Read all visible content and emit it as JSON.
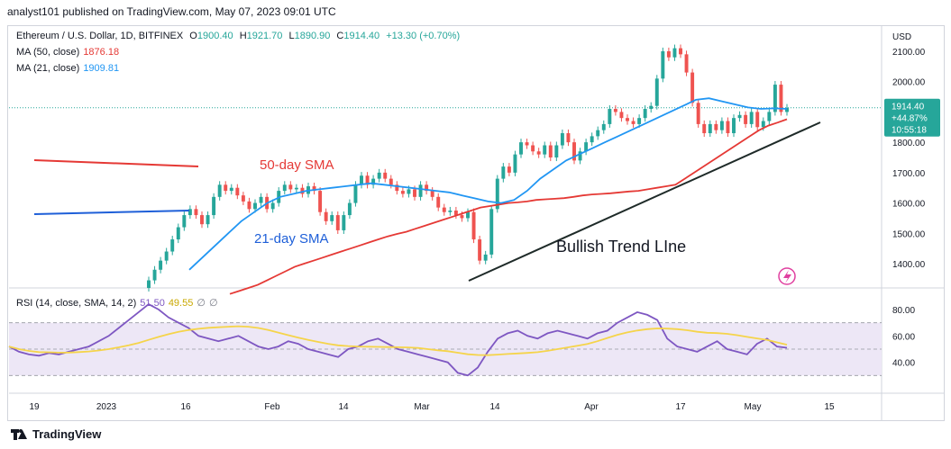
{
  "publisher_line": "analyst101 published on TradingView.com, May 07, 2023 09:01 UTC",
  "legend": {
    "symbol": "Ethereum / U.S. Dollar, 1D, BITFINEX",
    "o_label": "O",
    "o": "1900.40",
    "h_label": "H",
    "h": "1921.70",
    "l_label": "L",
    "l": "1890.90",
    "c_label": "C",
    "c": "1914.40",
    "change": "+13.30 (+0.70%)",
    "ma50_label": "MA (50, close)",
    "ma50_value": "1876.18",
    "ma21_label": "MA (21, close)",
    "ma21_value": "1909.81",
    "rsi_label": "RSI (14, close, SMA, 14, 2)",
    "rsi_value": "51.50",
    "rsi_sma": "49.55",
    "rsi_extra1": "∅",
    "rsi_extra2": "∅"
  },
  "price_axis": {
    "currency": "USD",
    "ticks": [
      "2100.00",
      "2000.00",
      "1900.00",
      "1800.00",
      "1700.00",
      "1600.00",
      "1500.00",
      "1400.00"
    ]
  },
  "rsi_axis": {
    "ticks": [
      "80.00",
      "60.00",
      "40.00"
    ]
  },
  "time_axis": {
    "ticks": [
      "19",
      "2023",
      "16",
      "Feb",
      "14",
      "Mar",
      "14",
      "Apr",
      "17",
      "May",
      "15"
    ]
  },
  "price_badge": {
    "price": "1914.40",
    "change_pct": "+44.87%",
    "countdown": "10:55:18"
  },
  "annotations": {
    "sma50": "50-day SMA",
    "sma21": "21-day SMA",
    "trend": "Bullish Trend LIne"
  },
  "colors": {
    "up": "#26a69a",
    "down": "#ef5350",
    "ma50": "#e53935",
    "ma21": "#2196f3",
    "rsi": "#7e57c2",
    "rsi_sma": "#f5d44a",
    "trend": "#1e2a28",
    "band": "#ede7f6"
  },
  "footer_brand": "TradingView",
  "chart_data": [
    {
      "type": "candlestick",
      "title": "Ethereum / U.S. Dollar, 1D, BITFINEX",
      "x_ticks": [
        "19",
        "2023",
        "16",
        "Feb",
        "14",
        "Mar",
        "14",
        "Apr",
        "17",
        "May",
        "15"
      ],
      "ylim": [
        1320,
        2180
      ],
      "y_ticks": [
        1400,
        1500,
        1600,
        1700,
        1800,
        1900,
        2000,
        2100
      ],
      "candles": [
        {
          "o": 1320,
          "c": 1345
        },
        {
          "o": 1345,
          "c": 1380
        },
        {
          "o": 1380,
          "c": 1410
        },
        {
          "o": 1410,
          "c": 1440
        },
        {
          "o": 1440,
          "c": 1480
        },
        {
          "o": 1480,
          "c": 1520
        },
        {
          "o": 1520,
          "c": 1560
        },
        {
          "o": 1560,
          "c": 1580
        },
        {
          "o": 1580,
          "c": 1560
        },
        {
          "o": 1560,
          "c": 1530
        },
        {
          "o": 1530,
          "c": 1560
        },
        {
          "o": 1560,
          "c": 1620
        },
        {
          "o": 1620,
          "c": 1660
        },
        {
          "o": 1660,
          "c": 1640
        },
        {
          "o": 1640,
          "c": 1650
        },
        {
          "o": 1650,
          "c": 1625
        },
        {
          "o": 1625,
          "c": 1605
        },
        {
          "o": 1605,
          "c": 1580
        },
        {
          "o": 1580,
          "c": 1600
        },
        {
          "o": 1600,
          "c": 1620
        },
        {
          "o": 1620,
          "c": 1580
        },
        {
          "o": 1580,
          "c": 1600
        },
        {
          "o": 1600,
          "c": 1640
        },
        {
          "o": 1640,
          "c": 1660
        },
        {
          "o": 1660,
          "c": 1645
        },
        {
          "o": 1645,
          "c": 1650
        },
        {
          "o": 1650,
          "c": 1630
        },
        {
          "o": 1630,
          "c": 1655
        },
        {
          "o": 1655,
          "c": 1640
        },
        {
          "o": 1640,
          "c": 1570
        },
        {
          "o": 1570,
          "c": 1540
        },
        {
          "o": 1540,
          "c": 1560
        },
        {
          "o": 1560,
          "c": 1510
        },
        {
          "o": 1510,
          "c": 1560
        },
        {
          "o": 1560,
          "c": 1600
        },
        {
          "o": 1600,
          "c": 1660
        },
        {
          "o": 1660,
          "c": 1690
        },
        {
          "o": 1690,
          "c": 1660
        },
        {
          "o": 1660,
          "c": 1680
        },
        {
          "o": 1680,
          "c": 1700
        },
        {
          "o": 1700,
          "c": 1680
        },
        {
          "o": 1680,
          "c": 1660
        },
        {
          "o": 1660,
          "c": 1640
        },
        {
          "o": 1640,
          "c": 1630
        },
        {
          "o": 1630,
          "c": 1645
        },
        {
          "o": 1645,
          "c": 1620
        },
        {
          "o": 1620,
          "c": 1660
        },
        {
          "o": 1660,
          "c": 1640
        },
        {
          "o": 1640,
          "c": 1620
        },
        {
          "o": 1620,
          "c": 1585
        },
        {
          "o": 1585,
          "c": 1570
        },
        {
          "o": 1570,
          "c": 1575
        },
        {
          "o": 1575,
          "c": 1560
        },
        {
          "o": 1560,
          "c": 1550
        },
        {
          "o": 1550,
          "c": 1570
        },
        {
          "o": 1570,
          "c": 1480
        },
        {
          "o": 1480,
          "c": 1410
        },
        {
          "o": 1410,
          "c": 1430
        },
        {
          "o": 1430,
          "c": 1580
        },
        {
          "o": 1580,
          "c": 1680
        },
        {
          "o": 1680,
          "c": 1720
        },
        {
          "o": 1720,
          "c": 1700
        },
        {
          "o": 1700,
          "c": 1760
        },
        {
          "o": 1760,
          "c": 1800
        },
        {
          "o": 1800,
          "c": 1790
        },
        {
          "o": 1790,
          "c": 1770
        },
        {
          "o": 1770,
          "c": 1760
        },
        {
          "o": 1760,
          "c": 1790
        },
        {
          "o": 1790,
          "c": 1750
        },
        {
          "o": 1750,
          "c": 1790
        },
        {
          "o": 1790,
          "c": 1830
        },
        {
          "o": 1830,
          "c": 1800
        },
        {
          "o": 1800,
          "c": 1740
        },
        {
          "o": 1740,
          "c": 1770
        },
        {
          "o": 1770,
          "c": 1800
        },
        {
          "o": 1800,
          "c": 1820
        },
        {
          "o": 1820,
          "c": 1840
        },
        {
          "o": 1840,
          "c": 1860
        },
        {
          "o": 1860,
          "c": 1910
        },
        {
          "o": 1910,
          "c": 1900
        },
        {
          "o": 1900,
          "c": 1880
        },
        {
          "o": 1880,
          "c": 1870
        },
        {
          "o": 1870,
          "c": 1860
        },
        {
          "o": 1860,
          "c": 1880
        },
        {
          "o": 1880,
          "c": 1910
        },
        {
          "o": 1910,
          "c": 1920
        },
        {
          "o": 1920,
          "c": 2010
        },
        {
          "o": 2010,
          "c": 2100
        },
        {
          "o": 2100,
          "c": 2080
        },
        {
          "o": 2080,
          "c": 2110
        },
        {
          "o": 2110,
          "c": 2090
        },
        {
          "o": 2090,
          "c": 2030
        },
        {
          "o": 2030,
          "c": 1930
        },
        {
          "o": 1930,
          "c": 1860
        },
        {
          "o": 1860,
          "c": 1830
        },
        {
          "o": 1830,
          "c": 1860
        },
        {
          "o": 1860,
          "c": 1840
        },
        {
          "o": 1840,
          "c": 1870
        },
        {
          "o": 1870,
          "c": 1830
        },
        {
          "o": 1830,
          "c": 1880
        },
        {
          "o": 1880,
          "c": 1890
        },
        {
          "o": 1890,
          "c": 1860
        },
        {
          "o": 1860,
          "c": 1900
        },
        {
          "o": 1900,
          "c": 1850
        },
        {
          "o": 1850,
          "c": 1870
        },
        {
          "o": 1870,
          "c": 1900
        },
        {
          "o": 1900,
          "c": 1990
        },
        {
          "o": 1990,
          "c": 1900
        },
        {
          "o": 1900,
          "c": 1914
        }
      ],
      "series": [
        {
          "name": "MA (50, close)",
          "values": [
            1300,
            1310,
            1320,
            1330,
            1345,
            1360,
            1375,
            1390,
            1400,
            1410,
            1420,
            1430,
            1440,
            1450,
            1460,
            1470,
            1480,
            1490,
            1498,
            1505,
            1515,
            1525,
            1535,
            1545,
            1555,
            1565,
            1575,
            1585,
            1590,
            1595,
            1600,
            1602,
            1605,
            1610,
            1612,
            1614,
            1616,
            1620,
            1625,
            1628,
            1630,
            1632,
            1635,
            1638,
            1640,
            1645,
            1650,
            1655,
            1660,
            1680,
            1700,
            1720,
            1740,
            1760,
            1780,
            1800,
            1820,
            1840,
            1855,
            1865,
            1876
          ]
        },
        {
          "name": "MA (21, close)",
          "values": [
            1380,
            1420,
            1460,
            1500,
            1540,
            1570,
            1600,
            1620,
            1630,
            1640,
            1645,
            1650,
            1655,
            1660,
            1665,
            1660,
            1655,
            1650,
            1645,
            1640,
            1635,
            1625,
            1615,
            1605,
            1600,
            1610,
            1640,
            1680,
            1710,
            1740,
            1760,
            1780,
            1800,
            1820,
            1840,
            1860,
            1880,
            1900,
            1920,
            1940,
            1945,
            1935,
            1925,
            1915,
            1910,
            1912,
            1910
          ]
        },
        {
          "name": "RSI (14, close, SMA, 14, 2)",
          "values": [
            52,
            48,
            46,
            45,
            47,
            46,
            48,
            50,
            52,
            56,
            60,
            66,
            72,
            78,
            84,
            80,
            74,
            70,
            66,
            60,
            58,
            56,
            58,
            60,
            56,
            52,
            50,
            52,
            56,
            54,
            50,
            48,
            46,
            44,
            50,
            52,
            56,
            58,
            54,
            50,
            48,
            46,
            44,
            42,
            40,
            32,
            30,
            36,
            48,
            58,
            62,
            64,
            60,
            58,
            62,
            64,
            62,
            60,
            58,
            62,
            64,
            70,
            74,
            78,
            76,
            72,
            58,
            52,
            50,
            48,
            52,
            56,
            50,
            48,
            46,
            54,
            58,
            52,
            51
          ]
        }
      ]
    }
  ]
}
